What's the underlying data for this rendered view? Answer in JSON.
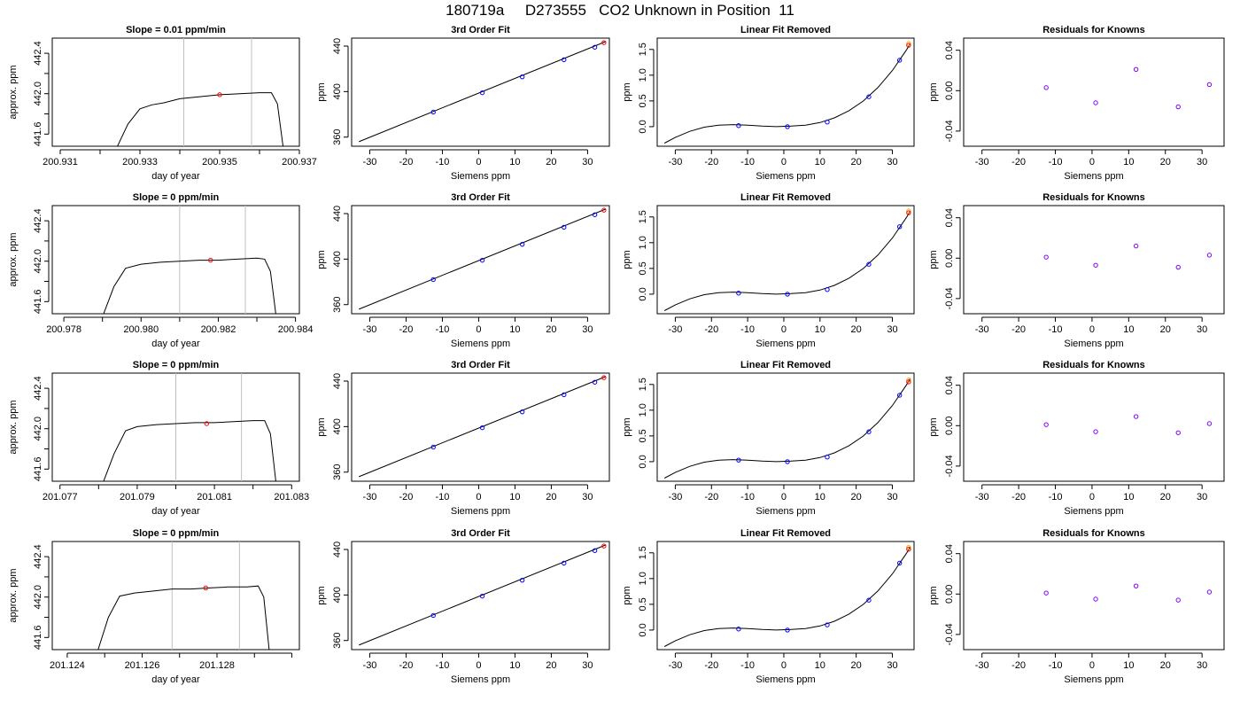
{
  "figure": {
    "title": "180719a     D273555   CO2 Unknown in Position  11"
  },
  "chart_data": [
    {
      "type": "line",
      "panel": "timeseries",
      "title": "Slope =  0.01  ppm/min",
      "xlabel": "day of year",
      "ylabel": "approx. ppm",
      "xlim": [
        200.9308,
        200.937
      ],
      "ylim": [
        441.48,
        442.55
      ],
      "xticks": [
        200.931,
        200.932,
        200.933,
        200.934,
        200.935,
        200.936,
        200.937
      ],
      "xticklabels": [
        "200.931",
        "",
        "200.933",
        "",
        "200.935",
        "",
        "200.937"
      ],
      "yticks": [
        441.6,
        441.8,
        442.0,
        442.2,
        442.4
      ],
      "yticklabels": [
        "441.6",
        "",
        "442.0",
        "",
        "442.4"
      ],
      "vlines": [
        200.9341,
        200.9358
      ],
      "x": [
        200.9324,
        200.9327,
        200.933,
        200.9333,
        200.9336,
        200.934,
        200.9345,
        200.935,
        200.9355,
        200.936,
        200.9363,
        200.93645,
        200.9366
      ],
      "y": [
        441.45,
        441.7,
        441.85,
        441.89,
        441.91,
        441.95,
        441.97,
        441.99,
        442.0,
        442.01,
        442.01,
        441.9,
        441.45
      ],
      "marker": {
        "x": 200.935,
        "y": 441.99
      }
    },
    {
      "type": "scatter",
      "panel": "fit",
      "title": "3rd Order Fit",
      "xlabel": "Siemens ppm",
      "ylabel": "ppm",
      "xlim": [
        -35,
        36
      ],
      "ylim": [
        352,
        447
      ],
      "xticks": [
        -30,
        -20,
        -10,
        0,
        10,
        20,
        30
      ],
      "yticks": [
        360,
        400,
        440
      ],
      "line": {
        "x1": -33,
        "y1": 356,
        "x2": 35,
        "y2": 444
      },
      "knowns_x": [
        -12.5,
        1,
        12,
        23.5,
        32
      ],
      "knowns_y": [
        382,
        399,
        413,
        428,
        439
      ],
      "unknown": {
        "x": 34.5,
        "y": 443
      }
    },
    {
      "type": "line",
      "panel": "linear_removed",
      "title": "Linear Fit Removed",
      "xlabel": "Siemens ppm",
      "ylabel": "ppm",
      "xlim": [
        -35,
        36
      ],
      "ylim": [
        -0.38,
        1.72
      ],
      "xticks": [
        -30,
        -20,
        -10,
        0,
        10,
        20,
        30
      ],
      "yticks": [
        0.0,
        0.5,
        1.0,
        1.5
      ],
      "yticklabels": [
        "0.0",
        "0.5",
        "1.0",
        "1.5"
      ],
      "curve_x": [
        -33,
        -30,
        -26,
        -22,
        -18,
        -14,
        -10,
        -6,
        -2,
        2,
        6,
        10,
        14,
        18,
        22,
        26,
        30,
        34,
        35
      ],
      "curve_y": [
        -0.32,
        -0.21,
        -0.09,
        -0.01,
        0.03,
        0.04,
        0.03,
        0.01,
        0.0,
        0.01,
        0.03,
        0.08,
        0.17,
        0.31,
        0.5,
        0.76,
        1.09,
        1.5,
        1.62
      ],
      "knowns_x": [
        -12.5,
        1,
        12,
        23.5,
        32
      ],
      "knowns_y": [
        0.02,
        0.0,
        0.09,
        0.58,
        1.29
      ],
      "unknown": {
        "x": 34.5,
        "y": 1.58
      }
    },
    {
      "type": "scatter",
      "panel": "residuals",
      "title": "Residuals for Knowns",
      "xlabel": "Siemens ppm",
      "ylabel": "ppm",
      "xlim": [
        -35,
        36
      ],
      "ylim": [
        -0.055,
        0.052
      ],
      "xticks": [
        -30,
        -20,
        -10,
        0,
        10,
        20,
        30
      ],
      "yticks": [
        -0.04,
        0.0,
        0.04
      ],
      "yticklabels": [
        "-0.04",
        "0.00",
        "0.04"
      ],
      "x": [
        -12.5,
        1,
        12,
        23.5,
        32
      ],
      "y": [
        0.003,
        -0.012,
        0.021,
        -0.016,
        0.006
      ]
    },
    {
      "type": "line",
      "panel": "timeseries",
      "title": "Slope =  0  ppm/min",
      "xlabel": "day of year",
      "ylabel": "approx. ppm",
      "xlim": [
        200.9777,
        200.9841
      ],
      "ylim": [
        441.48,
        442.55
      ],
      "xticks": [
        200.978,
        200.979,
        200.98,
        200.981,
        200.982,
        200.983,
        200.984
      ],
      "xticklabels": [
        "200.978",
        "",
        "200.980",
        "",
        "200.982",
        "",
        "200.984"
      ],
      "yticks": [
        441.6,
        441.8,
        442.0,
        442.2,
        442.4
      ],
      "yticklabels": [
        "441.6",
        "",
        "442.0",
        "",
        "442.4"
      ],
      "vlines": [
        200.981,
        200.9827
      ],
      "x": [
        200.979,
        200.9793,
        200.9796,
        200.98,
        200.9805,
        200.981,
        200.9815,
        200.982,
        200.9825,
        200.983,
        200.9832,
        200.98335,
        200.9835
      ],
      "y": [
        441.45,
        441.75,
        441.93,
        441.97,
        441.99,
        442.0,
        442.01,
        442.01,
        442.02,
        442.03,
        442.02,
        441.9,
        441.45
      ],
      "marker": {
        "x": 200.9818,
        "y": 442.01
      }
    },
    {
      "type": "scatter",
      "panel": "fit",
      "title": "3rd Order Fit",
      "xlabel": "Siemens ppm",
      "ylabel": "ppm",
      "xlim": [
        -35,
        36
      ],
      "ylim": [
        352,
        447
      ],
      "xticks": [
        -30,
        -20,
        -10,
        0,
        10,
        20,
        30
      ],
      "yticks": [
        360,
        400,
        440
      ],
      "line": {
        "x1": -33,
        "y1": 356,
        "x2": 35,
        "y2": 444
      },
      "knowns_x": [
        -12.5,
        1,
        12,
        23.5,
        32
      ],
      "knowns_y": [
        382,
        399,
        413,
        428,
        439
      ],
      "unknown": {
        "x": 34.5,
        "y": 443
      }
    },
    {
      "type": "line",
      "panel": "linear_removed",
      "title": "Linear Fit Removed",
      "xlabel": "Siemens ppm",
      "ylabel": "ppm",
      "xlim": [
        -35,
        36
      ],
      "ylim": [
        -0.38,
        1.72
      ],
      "xticks": [
        -30,
        -20,
        -10,
        0,
        10,
        20,
        30
      ],
      "yticks": [
        0.0,
        0.5,
        1.0,
        1.5
      ],
      "yticklabels": [
        "0.0",
        "0.5",
        "1.0",
        "1.5"
      ],
      "curve_x": [
        -33,
        -30,
        -26,
        -22,
        -18,
        -14,
        -10,
        -6,
        -2,
        2,
        6,
        10,
        14,
        18,
        22,
        26,
        30,
        34,
        35
      ],
      "curve_y": [
        -0.32,
        -0.21,
        -0.09,
        -0.01,
        0.03,
        0.04,
        0.03,
        0.01,
        0.0,
        0.01,
        0.03,
        0.08,
        0.17,
        0.31,
        0.5,
        0.76,
        1.09,
        1.5,
        1.62
      ],
      "knowns_x": [
        -12.5,
        1,
        12,
        23.5,
        32
      ],
      "knowns_y": [
        0.02,
        0.0,
        0.09,
        0.58,
        1.31
      ],
      "unknown": {
        "x": 34.5,
        "y": 1.58
      }
    },
    {
      "type": "scatter",
      "panel": "residuals",
      "title": "Residuals for Knowns",
      "xlabel": "Siemens ppm",
      "ylabel": "ppm",
      "xlim": [
        -35,
        36
      ],
      "ylim": [
        -0.055,
        0.052
      ],
      "xticks": [
        -30,
        -20,
        -10,
        0,
        10,
        20,
        30
      ],
      "yticks": [
        -0.04,
        0.0,
        0.04
      ],
      "yticklabels": [
        "-0.04",
        "0.00",
        "0.04"
      ],
      "x": [
        -12.5,
        1,
        12,
        23.5,
        32
      ],
      "y": [
        0.001,
        -0.007,
        0.012,
        -0.009,
        0.003
      ]
    },
    {
      "type": "line",
      "panel": "timeseries",
      "title": "Slope =  0  ppm/min",
      "xlabel": "day of year",
      "ylabel": "approx. ppm",
      "xlim": [
        201.0768,
        201.0832
      ],
      "ylim": [
        441.48,
        442.55
      ],
      "xticks": [
        201.077,
        201.078,
        201.079,
        201.08,
        201.081,
        201.082,
        201.083
      ],
      "xticklabels": [
        "201.077",
        "",
        "201.079",
        "",
        "201.081",
        "",
        "201.083"
      ],
      "yticks": [
        441.6,
        441.8,
        442.0,
        442.2,
        442.4
      ],
      "yticklabels": [
        "441.6",
        "",
        "442.0",
        "",
        "442.4"
      ],
      "vlines": [
        201.08,
        201.0817
      ],
      "x": [
        201.0781,
        201.0784,
        201.0787,
        201.079,
        201.0795,
        201.08,
        201.0805,
        201.081,
        201.0815,
        201.082,
        201.0823,
        201.08245,
        201.0826
      ],
      "y": [
        441.45,
        441.75,
        441.98,
        442.02,
        442.04,
        442.05,
        442.06,
        442.06,
        442.07,
        442.08,
        442.08,
        441.95,
        441.45
      ],
      "marker": {
        "x": 201.0808,
        "y": 442.05
      }
    },
    {
      "type": "scatter",
      "panel": "fit",
      "title": "3rd Order Fit",
      "xlabel": "Siemens ppm",
      "ylabel": "ppm",
      "xlim": [
        -35,
        36
      ],
      "ylim": [
        352,
        447
      ],
      "xticks": [
        -30,
        -20,
        -10,
        0,
        10,
        20,
        30
      ],
      "yticks": [
        360,
        400,
        440
      ],
      "line": {
        "x1": -33,
        "y1": 356,
        "x2": 35,
        "y2": 444
      },
      "knowns_x": [
        -12.5,
        1,
        12,
        23.5,
        32
      ],
      "knowns_y": [
        382,
        399,
        413,
        428,
        439
      ],
      "unknown": {
        "x": 34.5,
        "y": 443
      }
    },
    {
      "type": "line",
      "panel": "linear_removed",
      "title": "Linear Fit Removed",
      "xlabel": "Siemens ppm",
      "ylabel": "ppm",
      "xlim": [
        -35,
        36
      ],
      "ylim": [
        -0.38,
        1.72
      ],
      "xticks": [
        -30,
        -20,
        -10,
        0,
        10,
        20,
        30
      ],
      "yticks": [
        0.0,
        0.5,
        1.0,
        1.5
      ],
      "yticklabels": [
        "0.0",
        "0.5",
        "1.0",
        "1.5"
      ],
      "curve_x": [
        -33,
        -30,
        -26,
        -22,
        -18,
        -14,
        -10,
        -6,
        -2,
        2,
        6,
        10,
        14,
        18,
        22,
        26,
        30,
        34,
        35
      ],
      "curve_y": [
        -0.32,
        -0.21,
        -0.09,
        -0.01,
        0.03,
        0.04,
        0.03,
        0.01,
        0.0,
        0.01,
        0.03,
        0.08,
        0.17,
        0.31,
        0.5,
        0.76,
        1.09,
        1.5,
        1.62
      ],
      "knowns_x": [
        -12.5,
        1,
        12,
        23.5,
        32
      ],
      "knowns_y": [
        0.03,
        0.0,
        0.09,
        0.58,
        1.29
      ],
      "unknown": {
        "x": 34.5,
        "y": 1.55
      }
    },
    {
      "type": "scatter",
      "panel": "residuals",
      "title": "Residuals for Knowns",
      "xlabel": "Siemens ppm",
      "ylabel": "ppm",
      "xlim": [
        -35,
        36
      ],
      "ylim": [
        -0.055,
        0.052
      ],
      "xticks": [
        -30,
        -20,
        -10,
        0,
        10,
        20,
        30
      ],
      "yticks": [
        -0.04,
        0.0,
        0.04
      ],
      "yticklabels": [
        "-0.04",
        "0.00",
        "0.04"
      ],
      "x": [
        -12.5,
        1,
        12,
        23.5,
        32
      ],
      "y": [
        0.001,
        -0.006,
        0.009,
        -0.007,
        0.002
      ]
    },
    {
      "type": "line",
      "panel": "timeseries",
      "title": "Slope =  0  ppm/min",
      "xlabel": "day of year",
      "ylabel": "approx. ppm",
      "xlim": [
        201.1236,
        201.1302
      ],
      "ylim": [
        441.48,
        442.55
      ],
      "xticks": [
        201.124,
        201.125,
        201.126,
        201.127,
        201.128,
        201.129,
        201.13
      ],
      "xticklabels": [
        "201.124",
        "",
        "201.126",
        "",
        "201.128",
        "",
        ""
      ],
      "yticks": [
        441.6,
        441.8,
        442.0,
        442.2,
        442.4
      ],
      "yticklabels": [
        "441.6",
        "",
        "442.0",
        "",
        "442.4"
      ],
      "vlines": [
        201.1268,
        201.1286
      ],
      "x": [
        201.1248,
        201.1251,
        201.1254,
        201.1258,
        201.1263,
        201.1268,
        201.1273,
        201.1278,
        201.1283,
        201.1288,
        201.1291,
        201.12925,
        201.1294
      ],
      "y": [
        441.45,
        441.8,
        442.01,
        442.04,
        442.06,
        442.08,
        442.08,
        442.09,
        442.1,
        442.1,
        442.11,
        442.0,
        441.45
      ],
      "marker": {
        "x": 201.1277,
        "y": 442.09
      }
    },
    {
      "type": "scatter",
      "panel": "fit",
      "title": "3rd Order Fit",
      "xlabel": "Siemens ppm",
      "ylabel": "ppm",
      "xlim": [
        -35,
        36
      ],
      "ylim": [
        352,
        447
      ],
      "xticks": [
        -30,
        -20,
        -10,
        0,
        10,
        20,
        30
      ],
      "yticks": [
        360,
        400,
        440
      ],
      "line": {
        "x1": -33,
        "y1": 356,
        "x2": 35,
        "y2": 444
      },
      "knowns_x": [
        -12.5,
        1,
        12,
        23.5,
        32
      ],
      "knowns_y": [
        382,
        399,
        413,
        428,
        439
      ],
      "unknown": {
        "x": 34.5,
        "y": 443
      }
    },
    {
      "type": "line",
      "panel": "linear_removed",
      "title": "Linear Fit Removed",
      "xlabel": "Siemens ppm",
      "ylabel": "ppm",
      "xlim": [
        -35,
        36
      ],
      "ylim": [
        -0.38,
        1.72
      ],
      "xticks": [
        -30,
        -20,
        -10,
        0,
        10,
        20,
        30
      ],
      "yticks": [
        0.0,
        0.5,
        1.0,
        1.5
      ],
      "yticklabels": [
        "0.0",
        "0.5",
        "1.0",
        "1.5"
      ],
      "curve_x": [
        -33,
        -30,
        -26,
        -22,
        -18,
        -14,
        -10,
        -6,
        -2,
        2,
        6,
        10,
        14,
        18,
        22,
        26,
        30,
        34,
        35
      ],
      "curve_y": [
        -0.32,
        -0.21,
        -0.09,
        -0.01,
        0.03,
        0.04,
        0.03,
        0.01,
        0.0,
        0.01,
        0.03,
        0.08,
        0.17,
        0.31,
        0.5,
        0.76,
        1.09,
        1.5,
        1.62
      ],
      "knowns_x": [
        -12.5,
        1,
        12,
        23.5,
        32
      ],
      "knowns_y": [
        0.02,
        0.0,
        0.1,
        0.58,
        1.3
      ],
      "unknown": {
        "x": 34.5,
        "y": 1.57
      }
    },
    {
      "type": "scatter",
      "panel": "residuals",
      "title": "Residuals for Knowns",
      "xlabel": "Siemens ppm",
      "ylabel": "ppm",
      "xlim": [
        -35,
        36
      ],
      "ylim": [
        -0.055,
        0.052
      ],
      "xticks": [
        -30,
        -20,
        -10,
        0,
        10,
        20,
        30
      ],
      "yticks": [
        -0.04,
        0.0,
        0.04
      ],
      "yticklabels": [
        "-0.04",
        "0.00",
        "0.04"
      ],
      "x": [
        -12.5,
        1,
        12,
        23.5,
        32
      ],
      "y": [
        0.001,
        -0.005,
        0.008,
        -0.006,
        0.002
      ]
    }
  ],
  "colors": {
    "axis": "#000000",
    "series_line": "#000000",
    "known_points": "#0000ff",
    "residual_points": "#7f00ff",
    "unknown_point": "#ff0000",
    "unknown_halo": "#ffa500",
    "vline": "#c0c0c0"
  }
}
